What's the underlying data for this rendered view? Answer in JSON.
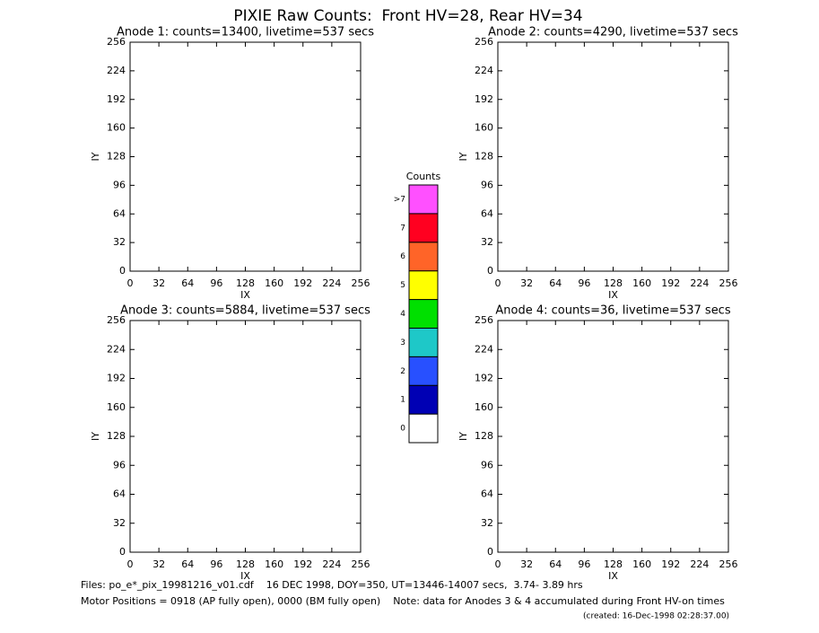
{
  "title": "PIXIE Raw Counts:  Front HV=28, Rear HV=34",
  "chart_data": [
    {
      "type": "heatmap",
      "title": "Anode 1: counts=13400, livetime=537 secs",
      "xlabel": "IX",
      "ylabel": "IY",
      "xlim": [
        0,
        256
      ],
      "ylim": [
        0,
        256
      ],
      "xticks": [
        0,
        32,
        64,
        96,
        128,
        160,
        192,
        224,
        256
      ],
      "yticks": [
        0,
        32,
        64,
        96,
        128,
        160,
        192,
        224,
        256
      ]
    },
    {
      "type": "heatmap",
      "title": "Anode 2: counts=4290, livetime=537 secs",
      "xlabel": "IX",
      "ylabel": "IY",
      "xlim": [
        0,
        256
      ],
      "ylim": [
        0,
        256
      ],
      "xticks": [
        0,
        32,
        64,
        96,
        128,
        160,
        192,
        224,
        256
      ],
      "yticks": [
        0,
        32,
        64,
        96,
        128,
        160,
        192,
        224,
        256
      ]
    },
    {
      "type": "heatmap",
      "title": "Anode 3: counts=5884, livetime=537 secs",
      "xlabel": "IX",
      "ylabel": "IY",
      "xlim": [
        0,
        256
      ],
      "ylim": [
        0,
        256
      ],
      "xticks": [
        0,
        32,
        64,
        96,
        128,
        160,
        192,
        224,
        256
      ],
      "yticks": [
        0,
        32,
        64,
        96,
        128,
        160,
        192,
        224,
        256
      ]
    },
    {
      "type": "heatmap",
      "title": "Anode 4: counts=36, livetime=537 secs",
      "xlabel": "IX",
      "ylabel": "IY",
      "xlim": [
        0,
        256
      ],
      "ylim": [
        0,
        256
      ],
      "xticks": [
        0,
        32,
        64,
        96,
        128,
        160,
        192,
        224,
        256
      ],
      "yticks": [
        0,
        32,
        64,
        96,
        128,
        160,
        192,
        224,
        256
      ]
    },
    {
      "type": "colorbar",
      "title": "Counts",
      "categories": [
        "0",
        "1",
        "2",
        "3",
        "4",
        "5",
        "6",
        "7",
        ">7"
      ],
      "colors": [
        "#ffffff",
        "#0000b4",
        "#2850ff",
        "#1ec8c8",
        "#00e000",
        "#ffff00",
        "#ff6428",
        "#ff0020",
        "#ff50ff"
      ]
    }
  ],
  "footer": [
    "Files: po_e*_pix_19981216_v01.cdf    16 DEC 1998, DOY=350, UT=13446-14007 secs,  3.74- 3.89 hrs",
    "Motor Positions = 0918 (AP fully open), 0000 (BM fully open)    Note: data for Anodes 3 & 4 accumulated during Front HV-on times",
    "(created: 16-Dec-1998 02:28:37.00)"
  ]
}
